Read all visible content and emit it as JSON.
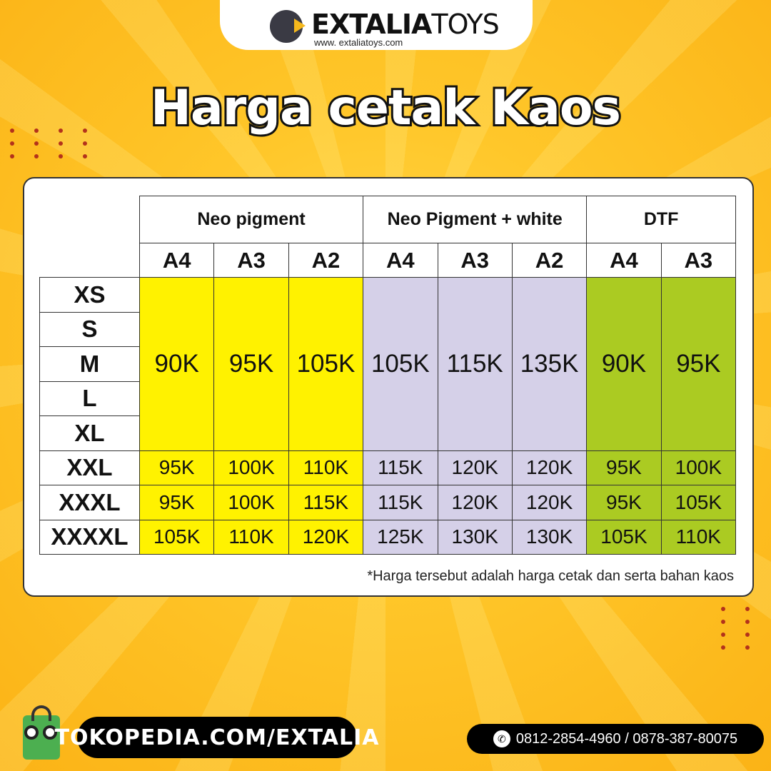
{
  "brand": {
    "name_bold": "EXTALIA",
    "name_thin": "TOYS",
    "url": "www. extaliatoys.com"
  },
  "title": "Harga cetak Kaos",
  "table": {
    "groups": [
      {
        "label": "Neo pigment",
        "span": 3
      },
      {
        "label": "Neo Pigment + white",
        "span": 3
      },
      {
        "label": "DTF",
        "span": 2
      }
    ],
    "sizes_header": [
      "A4",
      "A3",
      "A2",
      "A4",
      "A3",
      "A2",
      "A4",
      "A3"
    ],
    "column_groups": [
      0,
      0,
      0,
      1,
      1,
      1,
      2,
      2
    ],
    "group_colors": [
      "#fff200",
      "#d5d0e8",
      "#abcb22"
    ],
    "merged_sizes": [
      "XS",
      "S",
      "M",
      "L",
      "XL"
    ],
    "merged_prices": [
      "90K",
      "95K",
      "105K",
      "105K",
      "115K",
      "135K",
      "90K",
      "95K"
    ],
    "rows": [
      {
        "size": "XXL",
        "prices": [
          "95K",
          "100K",
          "110K",
          "115K",
          "120K",
          "120K",
          "95K",
          "100K"
        ]
      },
      {
        "size": "XXXL",
        "prices": [
          "95K",
          "100K",
          "115K",
          "115K",
          "120K",
          "120K",
          "95K",
          "105K"
        ]
      },
      {
        "size": "XXXXL",
        "prices": [
          "105K",
          "110K",
          "120K",
          "125K",
          "130K",
          "130K",
          "105K",
          "110K"
        ]
      }
    ]
  },
  "note": "*Harga tersebut adalah harga cetak dan serta bahan kaos",
  "footer": {
    "tokopedia": "TOKOPEDIA.COM/EXTALIA",
    "phone": "0812-2854-4960 / 0878-387-80075",
    "whatsapp_icon": "whatsapp-icon",
    "tokopedia_icon": "tokopedia-owl-bag-icon"
  }
}
